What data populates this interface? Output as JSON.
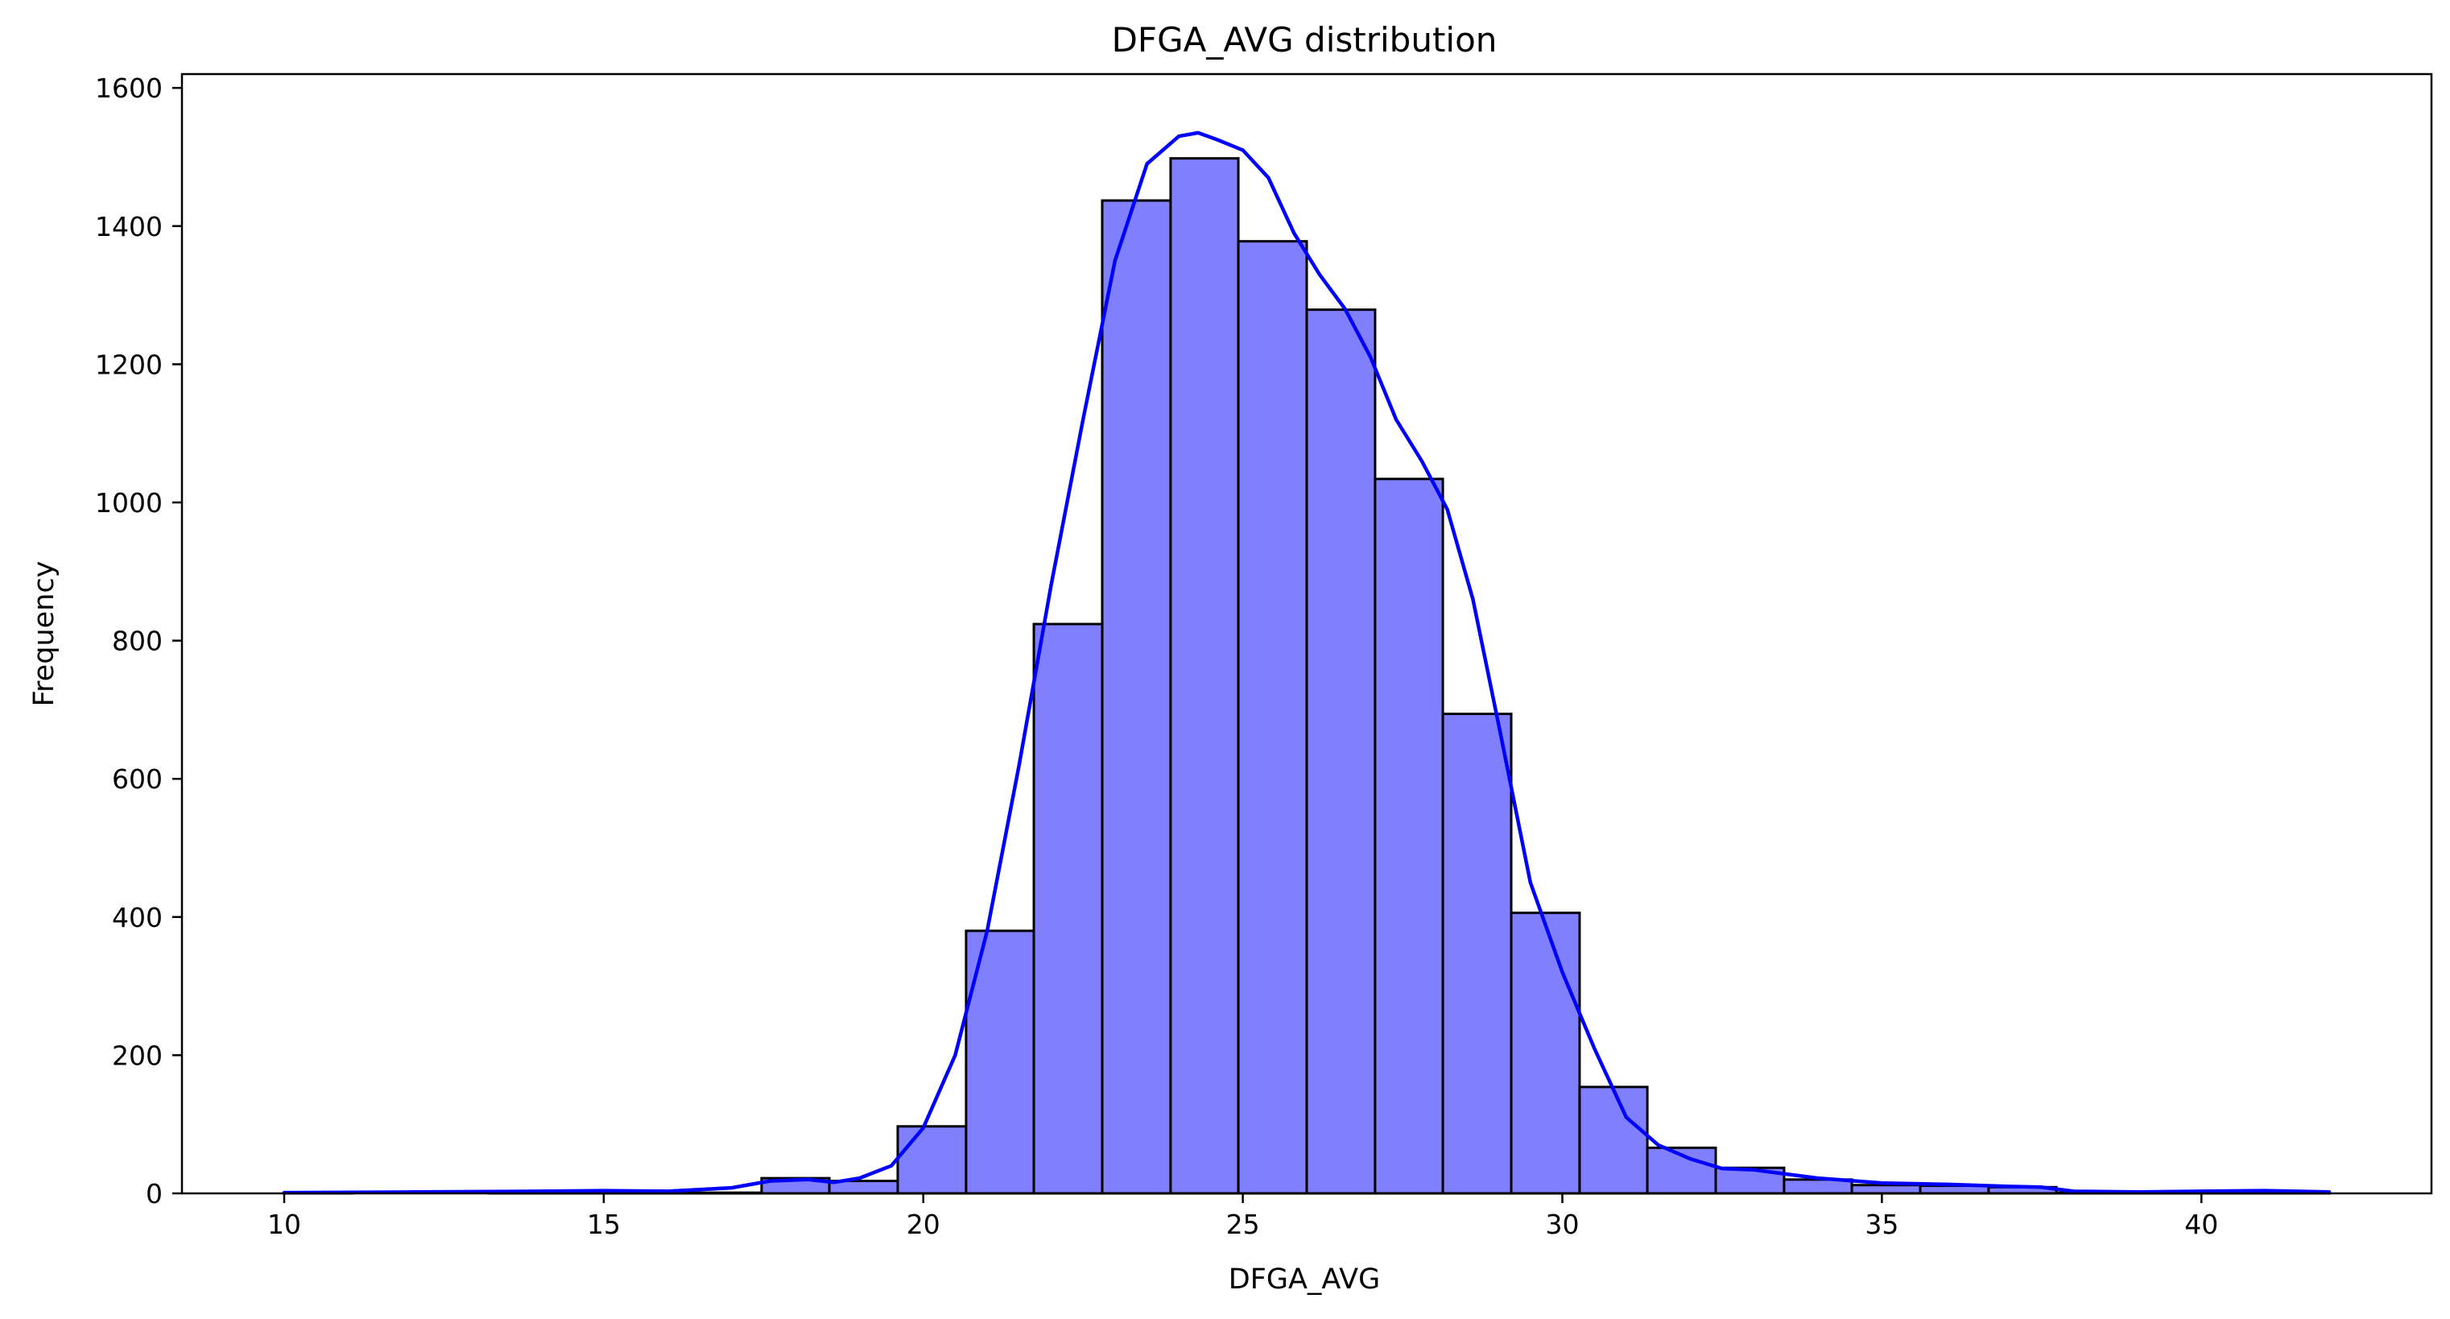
{
  "chart_data": {
    "type": "bar",
    "title": "DFGA_AVG distribution",
    "xlabel": "DFGA_AVG",
    "ylabel": "Frequency",
    "xlim": [
      8.4,
      43.6
    ],
    "ylim": [
      0,
      1620
    ],
    "xticks": [
      10,
      15,
      20,
      25,
      30,
      35,
      40
    ],
    "yticks": [
      0,
      200,
      400,
      600,
      800,
      1000,
      1200,
      1400,
      1600
    ],
    "grid": false,
    "legend": "none",
    "bins": {
      "edges": [
        10.0,
        11.07,
        12.13,
        13.2,
        14.27,
        15.33,
        16.4,
        17.47,
        18.53,
        19.6,
        20.67,
        21.73,
        22.8,
        23.87,
        24.93,
        26.0,
        27.07,
        28.13,
        29.2,
        30.27,
        31.33,
        32.4,
        33.47,
        34.53,
        35.6,
        36.67,
        37.73,
        38.8,
        39.87,
        40.93,
        42.0
      ],
      "counts": [
        1,
        0,
        0,
        1,
        2,
        1,
        1,
        22,
        18,
        97,
        380,
        824,
        1437,
        1498,
        1378,
        1279,
        1034,
        694,
        406,
        154,
        66,
        37,
        20,
        12,
        11,
        9,
        1,
        2,
        3,
        2
      ]
    },
    "kde": {
      "x": [
        10,
        12,
        14,
        15,
        16,
        17,
        17.6,
        18.2,
        18.6,
        19,
        19.5,
        20,
        20.5,
        21,
        21.5,
        22,
        22.5,
        23,
        23.5,
        24,
        24.3,
        24.6,
        25,
        25.4,
        25.8,
        26.2,
        26.6,
        27,
        27.4,
        27.8,
        28.2,
        28.6,
        29,
        29.5,
        30,
        30.5,
        31,
        31.5,
        32,
        32.5,
        33,
        33.5,
        34,
        35,
        36,
        37,
        37.5,
        38,
        39,
        40,
        41,
        42
      ],
      "y": [
        1,
        2,
        3,
        4,
        3,
        8,
        18,
        20,
        16,
        22,
        40,
        95,
        200,
        380,
        620,
        880,
        1120,
        1350,
        1490,
        1530,
        1535,
        1525,
        1510,
        1470,
        1390,
        1330,
        1280,
        1210,
        1120,
        1060,
        990,
        860,
        680,
        450,
        320,
        210,
        110,
        70,
        50,
        36,
        34,
        28,
        22,
        15,
        13,
        10,
        9,
        3,
        2,
        3,
        4,
        2
      ]
    },
    "colors": {
      "bar_fill": "#8080ff",
      "bar_edge": "#000000",
      "kde_line": "#0000ff"
    }
  }
}
